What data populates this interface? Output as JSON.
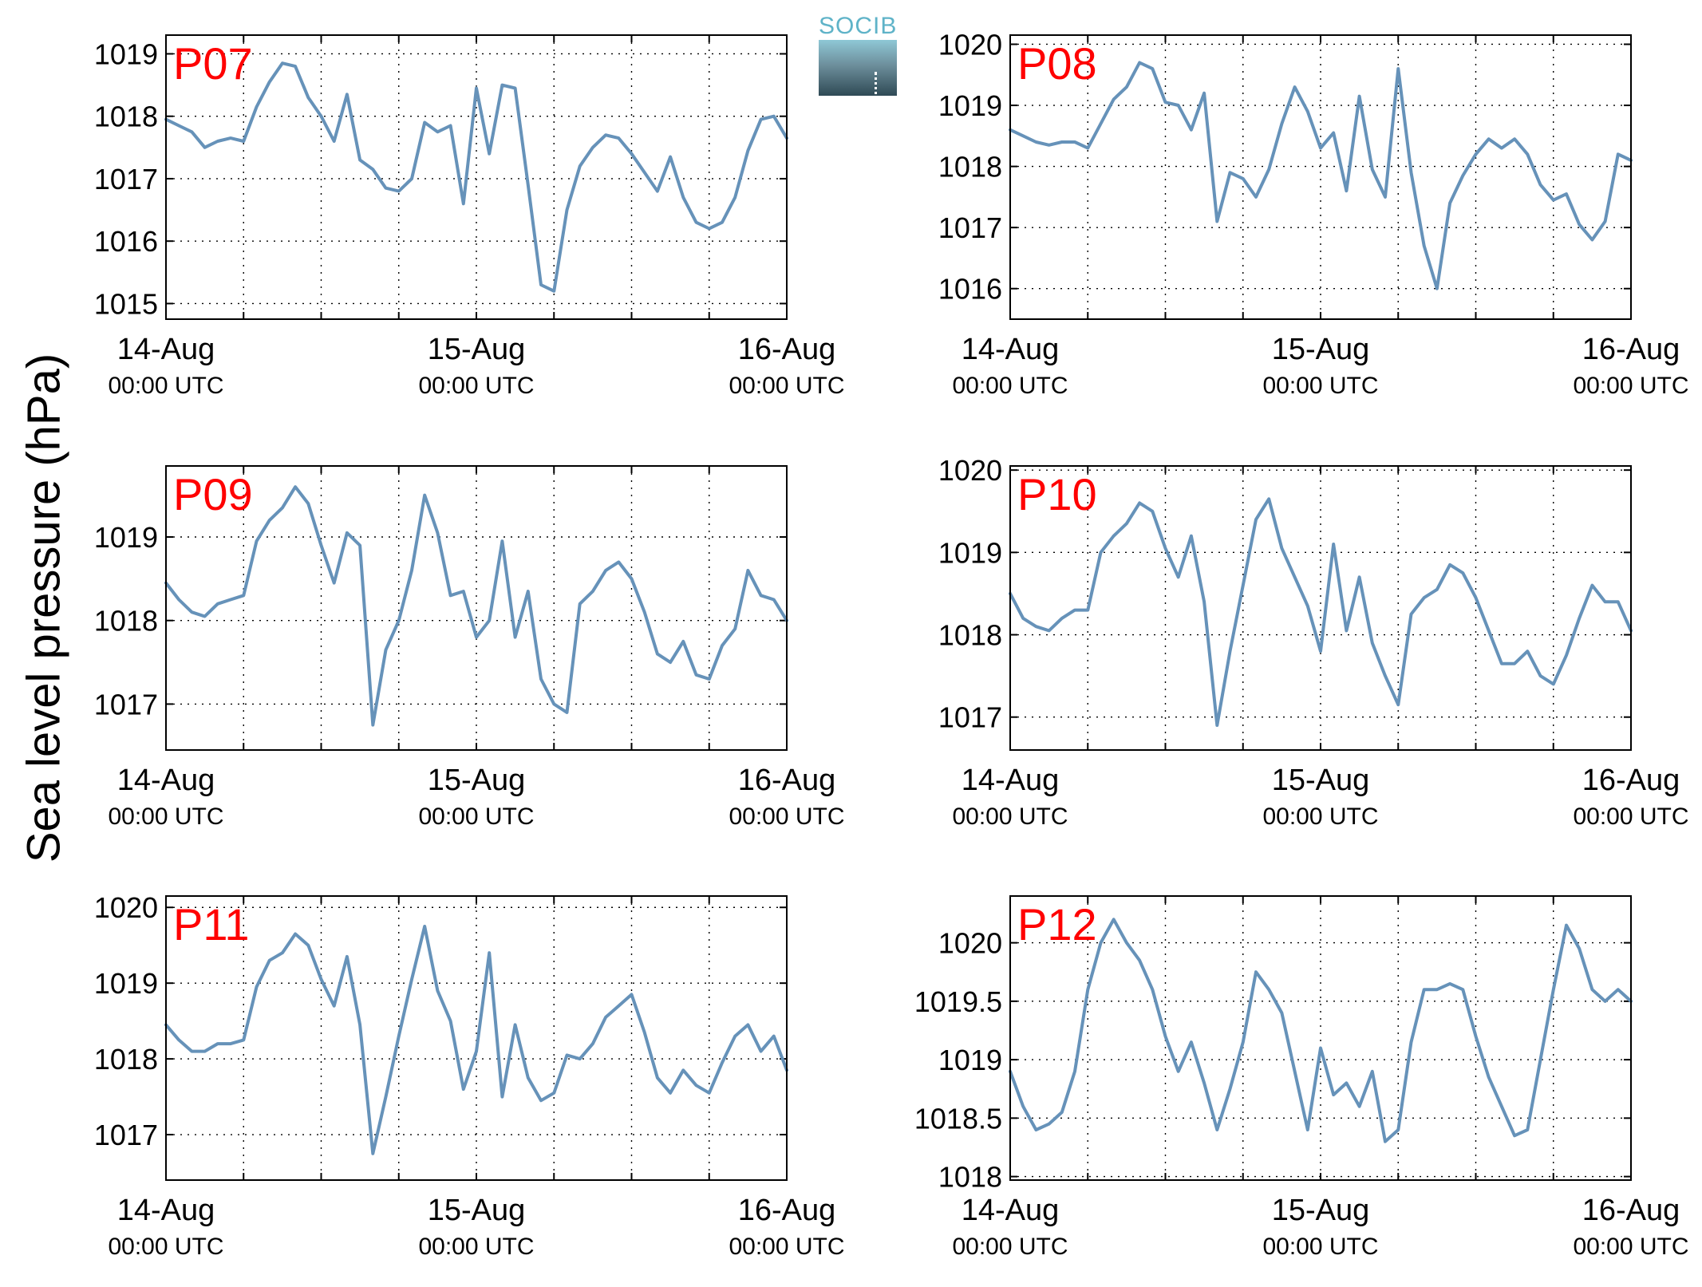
{
  "figure": {
    "ylabel": "Sea level pressure (hPa)",
    "logo_text": "SOCIB",
    "line_color": "#6692b9",
    "panel_label_color": "#ff0000"
  },
  "chart_data": [
    {
      "type": "line",
      "title": "P07",
      "xlabel": "",
      "ylabel": "",
      "xlim": [
        "2015-08-14 00:00",
        "2015-08-16 00:00"
      ],
      "ylim": [
        1014.75,
        1019.3
      ],
      "yticks": [
        1015,
        1016,
        1017,
        1018,
        1019
      ],
      "xtick_labels": [
        [
          "14-Aug",
          "00:00 UTC"
        ],
        [
          "15-Aug",
          "00:00 UTC"
        ],
        [
          "16-Aug",
          "00:00 UTC"
        ]
      ],
      "grid": true,
      "series": [
        {
          "x_hours": [
            0,
            1,
            2,
            3,
            4,
            5,
            6,
            7,
            8,
            9,
            10,
            11,
            12,
            13,
            14,
            15,
            16,
            17,
            18,
            19,
            20,
            21,
            22,
            23,
            24,
            25,
            26,
            27,
            28,
            29,
            30,
            31,
            32,
            33,
            34,
            35,
            36,
            37,
            38,
            39,
            40,
            41,
            42,
            43,
            44,
            45,
            46,
            47,
            48
          ],
          "values": [
            1017.95,
            1017.85,
            1017.75,
            1017.5,
            1017.6,
            1017.65,
            1017.6,
            1018.15,
            1018.55,
            1018.85,
            1018.8,
            1018.3,
            1018.0,
            1017.6,
            1018.35,
            1017.3,
            1017.15,
            1016.85,
            1016.8,
            1017.0,
            1017.9,
            1017.75,
            1017.85,
            1016.6,
            1018.45,
            1017.4,
            1018.5,
            1018.45,
            1016.9,
            1015.3,
            1015.2,
            1016.5,
            1017.2,
            1017.5,
            1017.7,
            1017.65,
            1017.4,
            1017.1,
            1016.8,
            1017.35,
            1016.7,
            1016.3,
            1016.2,
            1016.3,
            1016.7,
            1017.45,
            1017.95,
            1018.0,
            1017.65
          ]
        }
      ]
    },
    {
      "type": "line",
      "title": "P08",
      "xlabel": "",
      "ylabel": "",
      "xlim": [
        "2015-08-14 00:00",
        "2015-08-16 00:00"
      ],
      "ylim": [
        1015.5,
        1020.15
      ],
      "yticks": [
        1016,
        1017,
        1018,
        1019,
        1020
      ],
      "xtick_labels": [
        [
          "14-Aug",
          "00:00 UTC"
        ],
        [
          "15-Aug",
          "00:00 UTC"
        ],
        [
          "16-Aug",
          "00:00 UTC"
        ]
      ],
      "grid": true,
      "series": [
        {
          "x_hours": [
            0,
            1,
            2,
            3,
            4,
            5,
            6,
            7,
            8,
            9,
            10,
            11,
            12,
            13,
            14,
            15,
            16,
            17,
            18,
            19,
            20,
            21,
            22,
            23,
            24,
            25,
            26,
            27,
            28,
            29,
            30,
            31,
            32,
            33,
            34,
            35,
            36,
            37,
            38,
            39,
            40,
            41,
            42,
            43,
            44,
            45,
            46,
            47,
            48
          ],
          "values": [
            1018.6,
            1018.5,
            1018.4,
            1018.35,
            1018.4,
            1018.4,
            1018.3,
            1018.7,
            1019.1,
            1019.3,
            1019.7,
            1019.6,
            1019.05,
            1019.0,
            1018.6,
            1019.2,
            1017.1,
            1017.9,
            1017.8,
            1017.5,
            1017.95,
            1018.7,
            1019.3,
            1018.9,
            1018.3,
            1018.55,
            1017.6,
            1019.15,
            1017.95,
            1017.5,
            1019.6,
            1017.9,
            1016.7,
            1016.0,
            1017.4,
            1017.85,
            1018.2,
            1018.45,
            1018.3,
            1018.45,
            1018.2,
            1017.7,
            1017.45,
            1017.55,
            1017.05,
            1016.8,
            1017.1,
            1018.2,
            1018.1
          ]
        }
      ]
    },
    {
      "type": "line",
      "title": "P09",
      "xlabel": "",
      "ylabel": "",
      "xlim": [
        "2015-08-14 00:00",
        "2015-08-16 00:00"
      ],
      "ylim": [
        1016.45,
        1019.85
      ],
      "yticks": [
        1017,
        1018,
        1019
      ],
      "xtick_labels": [
        [
          "14-Aug",
          "00:00 UTC"
        ],
        [
          "15-Aug",
          "00:00 UTC"
        ],
        [
          "16-Aug",
          "00:00 UTC"
        ]
      ],
      "grid": true,
      "series": [
        {
          "x_hours": [
            0,
            1,
            2,
            3,
            4,
            5,
            6,
            7,
            8,
            9,
            10,
            11,
            12,
            13,
            14,
            15,
            16,
            17,
            18,
            19,
            20,
            21,
            22,
            23,
            24,
            25,
            26,
            27,
            28,
            29,
            30,
            31,
            32,
            33,
            34,
            35,
            36,
            37,
            38,
            39,
            40,
            41,
            42,
            43,
            44,
            45,
            46,
            47,
            48
          ],
          "values": [
            1018.45,
            1018.25,
            1018.1,
            1018.05,
            1018.2,
            1018.25,
            1018.3,
            1018.95,
            1019.2,
            1019.35,
            1019.6,
            1019.4,
            1018.9,
            1018.45,
            1019.05,
            1018.9,
            1016.75,
            1017.65,
            1018.0,
            1018.6,
            1019.5,
            1019.05,
            1018.3,
            1018.35,
            1017.8,
            1018.0,
            1018.95,
            1017.8,
            1018.35,
            1017.3,
            1017.0,
            1016.9,
            1018.2,
            1018.35,
            1018.6,
            1018.7,
            1018.5,
            1018.1,
            1017.6,
            1017.5,
            1017.75,
            1017.35,
            1017.3,
            1017.7,
            1017.9,
            1018.6,
            1018.3,
            1018.25,
            1018.0
          ]
        }
      ]
    },
    {
      "type": "line",
      "title": "P10",
      "xlabel": "",
      "ylabel": "",
      "xlim": [
        "2015-08-14 00:00",
        "2015-08-16 00:00"
      ],
      "ylim": [
        1016.6,
        1020.05
      ],
      "yticks": [
        1017,
        1018,
        1019,
        1020
      ],
      "xtick_labels": [
        [
          "14-Aug",
          "00:00 UTC"
        ],
        [
          "15-Aug",
          "00:00 UTC"
        ],
        [
          "16-Aug",
          "00:00 UTC"
        ]
      ],
      "grid": true,
      "series": [
        {
          "x_hours": [
            0,
            1,
            2,
            3,
            4,
            5,
            6,
            7,
            8,
            9,
            10,
            11,
            12,
            13,
            14,
            15,
            16,
            17,
            18,
            19,
            20,
            21,
            22,
            23,
            24,
            25,
            26,
            27,
            28,
            29,
            30,
            31,
            32,
            33,
            34,
            35,
            36,
            37,
            38,
            39,
            40,
            41,
            42,
            43,
            44,
            45,
            46,
            47,
            48
          ],
          "values": [
            1018.5,
            1018.2,
            1018.1,
            1018.05,
            1018.2,
            1018.3,
            1018.3,
            1019.0,
            1019.2,
            1019.35,
            1019.6,
            1019.5,
            1019.05,
            1018.7,
            1019.2,
            1018.4,
            1016.9,
            1017.8,
            1018.6,
            1019.4,
            1019.65,
            1019.05,
            1018.7,
            1018.35,
            1017.8,
            1019.1,
            1018.05,
            1018.7,
            1017.9,
            1017.5,
            1017.15,
            1018.25,
            1018.45,
            1018.55,
            1018.85,
            1018.75,
            1018.45,
            1018.05,
            1017.65,
            1017.65,
            1017.8,
            1017.5,
            1017.4,
            1017.75,
            1018.2,
            1018.6,
            1018.4,
            1018.4,
            1018.05
          ]
        }
      ]
    },
    {
      "type": "line",
      "title": "P11",
      "xlabel": "",
      "ylabel": "",
      "xlim": [
        "2015-08-14 00:00",
        "2015-08-16 00:00"
      ],
      "ylim": [
        1016.4,
        1020.15
      ],
      "yticks": [
        1017,
        1018,
        1019,
        1020
      ],
      "xtick_labels": [
        [
          "14-Aug",
          "00:00 UTC"
        ],
        [
          "15-Aug",
          "00:00 UTC"
        ],
        [
          "16-Aug",
          "00:00 UTC"
        ]
      ],
      "grid": true,
      "series": [
        {
          "x_hours": [
            0,
            1,
            2,
            3,
            4,
            5,
            6,
            7,
            8,
            9,
            10,
            11,
            12,
            13,
            14,
            15,
            16,
            17,
            18,
            19,
            20,
            21,
            22,
            23,
            24,
            25,
            26,
            27,
            28,
            29,
            30,
            31,
            32,
            33,
            34,
            35,
            36,
            37,
            38,
            39,
            40,
            41,
            42,
            43,
            44,
            45,
            46,
            47,
            48
          ],
          "values": [
            1018.45,
            1018.25,
            1018.1,
            1018.1,
            1018.2,
            1018.2,
            1018.25,
            1018.95,
            1019.3,
            1019.4,
            1019.65,
            1019.5,
            1019.05,
            1018.7,
            1019.35,
            1018.45,
            1016.75,
            1017.5,
            1018.3,
            1019.05,
            1019.75,
            1018.9,
            1018.5,
            1017.6,
            1018.1,
            1019.4,
            1017.5,
            1018.45,
            1017.75,
            1017.45,
            1017.55,
            1018.05,
            1018.0,
            1018.2,
            1018.55,
            1018.7,
            1018.85,
            1018.35,
            1017.75,
            1017.55,
            1017.85,
            1017.65,
            1017.55,
            1017.95,
            1018.3,
            1018.45,
            1018.1,
            1018.3,
            1017.85
          ]
        }
      ]
    },
    {
      "type": "line",
      "title": "P12",
      "xlabel": "",
      "ylabel": "",
      "xlim": [
        "2015-08-14 00:00",
        "2015-08-16 00:00"
      ],
      "ylim": [
        1017.97,
        1020.4
      ],
      "yticks": [
        1018,
        1018.5,
        1019,
        1019.5,
        1020
      ],
      "xtick_labels": [
        [
          "14-Aug",
          "00:00 UTC"
        ],
        [
          "15-Aug",
          "00:00 UTC"
        ],
        [
          "16-Aug",
          "00:00 UTC"
        ]
      ],
      "grid": true,
      "series": [
        {
          "x_hours": [
            0,
            1,
            2,
            3,
            4,
            5,
            6,
            7,
            8,
            9,
            10,
            11,
            12,
            13,
            14,
            15,
            16,
            17,
            18,
            19,
            20,
            21,
            22,
            23,
            24,
            25,
            26,
            27,
            28,
            29,
            30,
            31,
            32,
            33,
            34,
            35,
            36,
            37,
            38,
            39,
            40,
            41,
            42,
            43,
            44,
            45,
            46,
            47,
            48
          ],
          "values": [
            1018.9,
            1018.6,
            1018.4,
            1018.45,
            1018.55,
            1018.9,
            1019.6,
            1020.0,
            1020.2,
            1020.0,
            1019.85,
            1019.6,
            1019.2,
            1018.9,
            1019.15,
            1018.8,
            1018.4,
            1018.75,
            1019.15,
            1019.75,
            1019.6,
            1019.4,
            1018.9,
            1018.4,
            1019.1,
            1018.7,
            1018.8,
            1018.6,
            1018.9,
            1018.3,
            1018.4,
            1019.15,
            1019.6,
            1019.6,
            1019.65,
            1019.6,
            1019.2,
            1018.85,
            1018.6,
            1018.35,
            1018.4,
            1019.0,
            1019.6,
            1020.15,
            1019.95,
            1019.6,
            1019.5,
            1019.6,
            1019.5
          ]
        }
      ]
    }
  ]
}
